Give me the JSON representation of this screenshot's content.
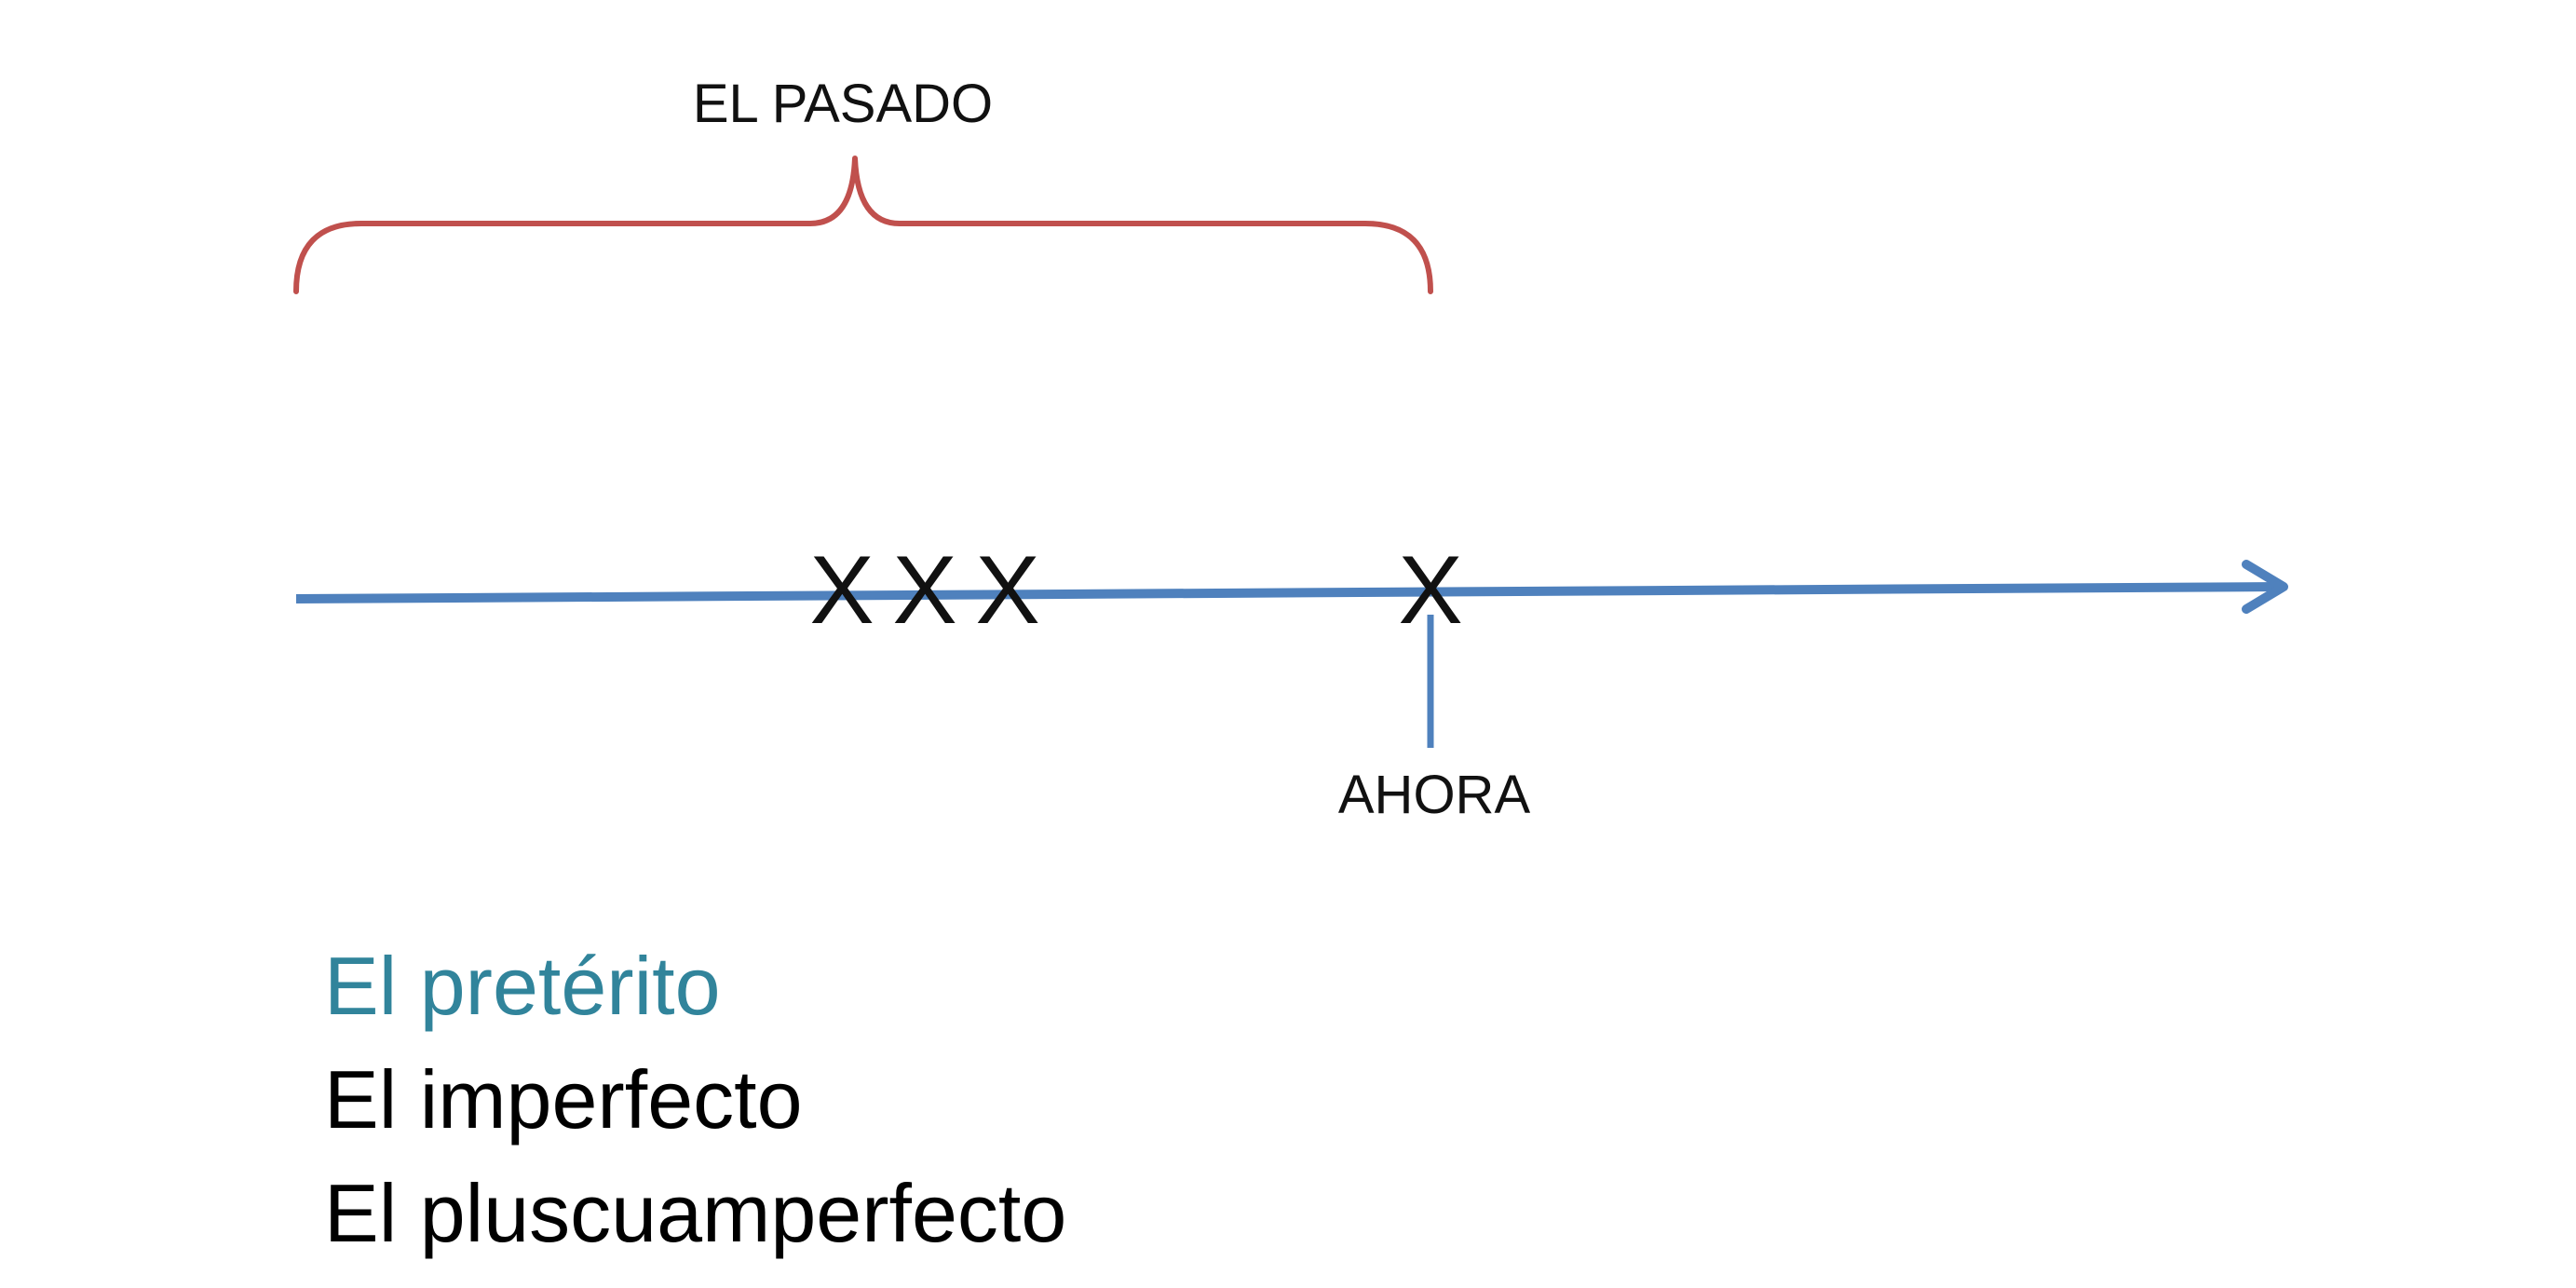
{
  "diagram": {
    "brace_label": "EL PASADO",
    "marks": [
      {
        "symbol": "X"
      },
      {
        "symbol": "X"
      },
      {
        "symbol": "X"
      }
    ],
    "now_mark": "X",
    "now_label": "AHORA"
  },
  "tenses": [
    {
      "label": "El pretérito",
      "color": "#31849b"
    },
    {
      "label": "El imperfecto",
      "color": "#000000"
    },
    {
      "label": "El pluscuamperfecto",
      "color": "#000000"
    }
  ],
  "colors": {
    "brace": "#c0504d",
    "timeline": "#4f81bd"
  }
}
